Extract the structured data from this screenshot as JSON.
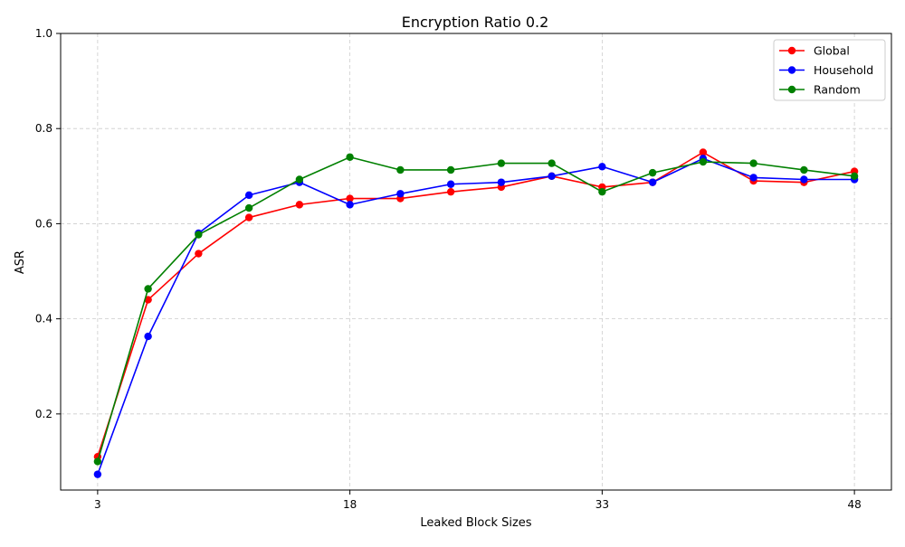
{
  "chart_data": {
    "type": "line",
    "title": "Encryption Ratio 0.2",
    "xlabel": "Leaked Block Sizes",
    "ylabel": "ASR",
    "xlim": [
      0.8,
      50.2
    ],
    "ylim": [
      0.04,
      1.0
    ],
    "xticks": [
      3,
      18,
      33,
      48
    ],
    "yticks": [
      0.2,
      0.4,
      0.6,
      0.8,
      1.0
    ],
    "xtick_labels": [
      "3",
      "18",
      "33",
      "48"
    ],
    "ytick_labels": [
      "0.2",
      "0.4",
      "0.6",
      "0.8",
      "1.0"
    ],
    "grid": true,
    "legend_position": "top-right",
    "x": [
      3,
      6,
      9,
      12,
      15,
      18,
      21,
      24,
      27,
      30,
      33,
      36,
      39,
      42,
      45,
      48
    ],
    "series": [
      {
        "name": "Global",
        "color": "#ff0000",
        "values": [
          0.11,
          0.44,
          0.537,
          0.613,
          0.64,
          0.653,
          0.653,
          0.667,
          0.677,
          0.7,
          0.677,
          0.687,
          0.75,
          0.69,
          0.687,
          0.71
        ]
      },
      {
        "name": "Household",
        "color": "#0000ff",
        "values": [
          0.073,
          0.363,
          0.58,
          0.66,
          0.687,
          0.64,
          0.663,
          0.683,
          0.687,
          0.7,
          0.72,
          0.687,
          0.737,
          0.697,
          0.693,
          0.693
        ]
      },
      {
        "name": "Random",
        "color": "#008000",
        "values": [
          0.1,
          0.463,
          0.577,
          0.633,
          0.693,
          0.74,
          0.713,
          0.713,
          0.727,
          0.727,
          0.667,
          0.707,
          0.73,
          0.727,
          0.713,
          0.7
        ]
      }
    ]
  }
}
